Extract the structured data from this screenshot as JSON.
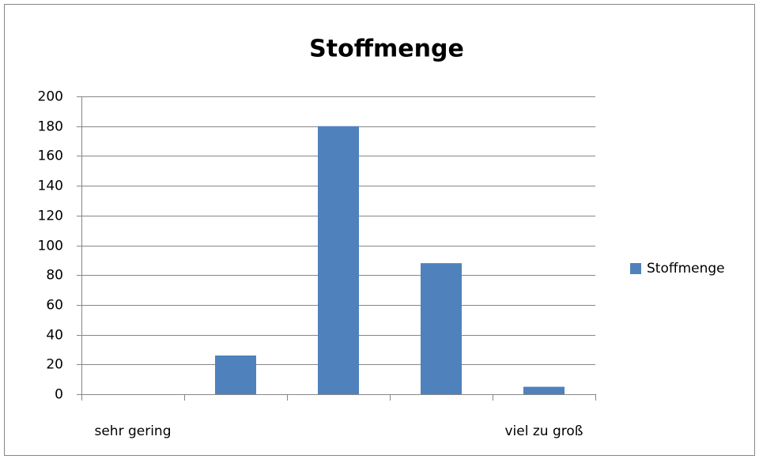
{
  "chart_data": {
    "type": "bar",
    "title": "Stoffmenge",
    "categories": [
      "sehr gering",
      null,
      null,
      null,
      "viel zu groß"
    ],
    "series": [
      {
        "name": "Stoffmenge",
        "color": "#4f81bd",
        "values": [
          0,
          26,
          180,
          88,
          5
        ]
      }
    ],
    "ylim": [
      0,
      200
    ],
    "yticks": [
      0,
      20,
      40,
      60,
      80,
      100,
      120,
      140,
      160,
      180,
      200
    ],
    "grid": true,
    "legend": "right"
  }
}
